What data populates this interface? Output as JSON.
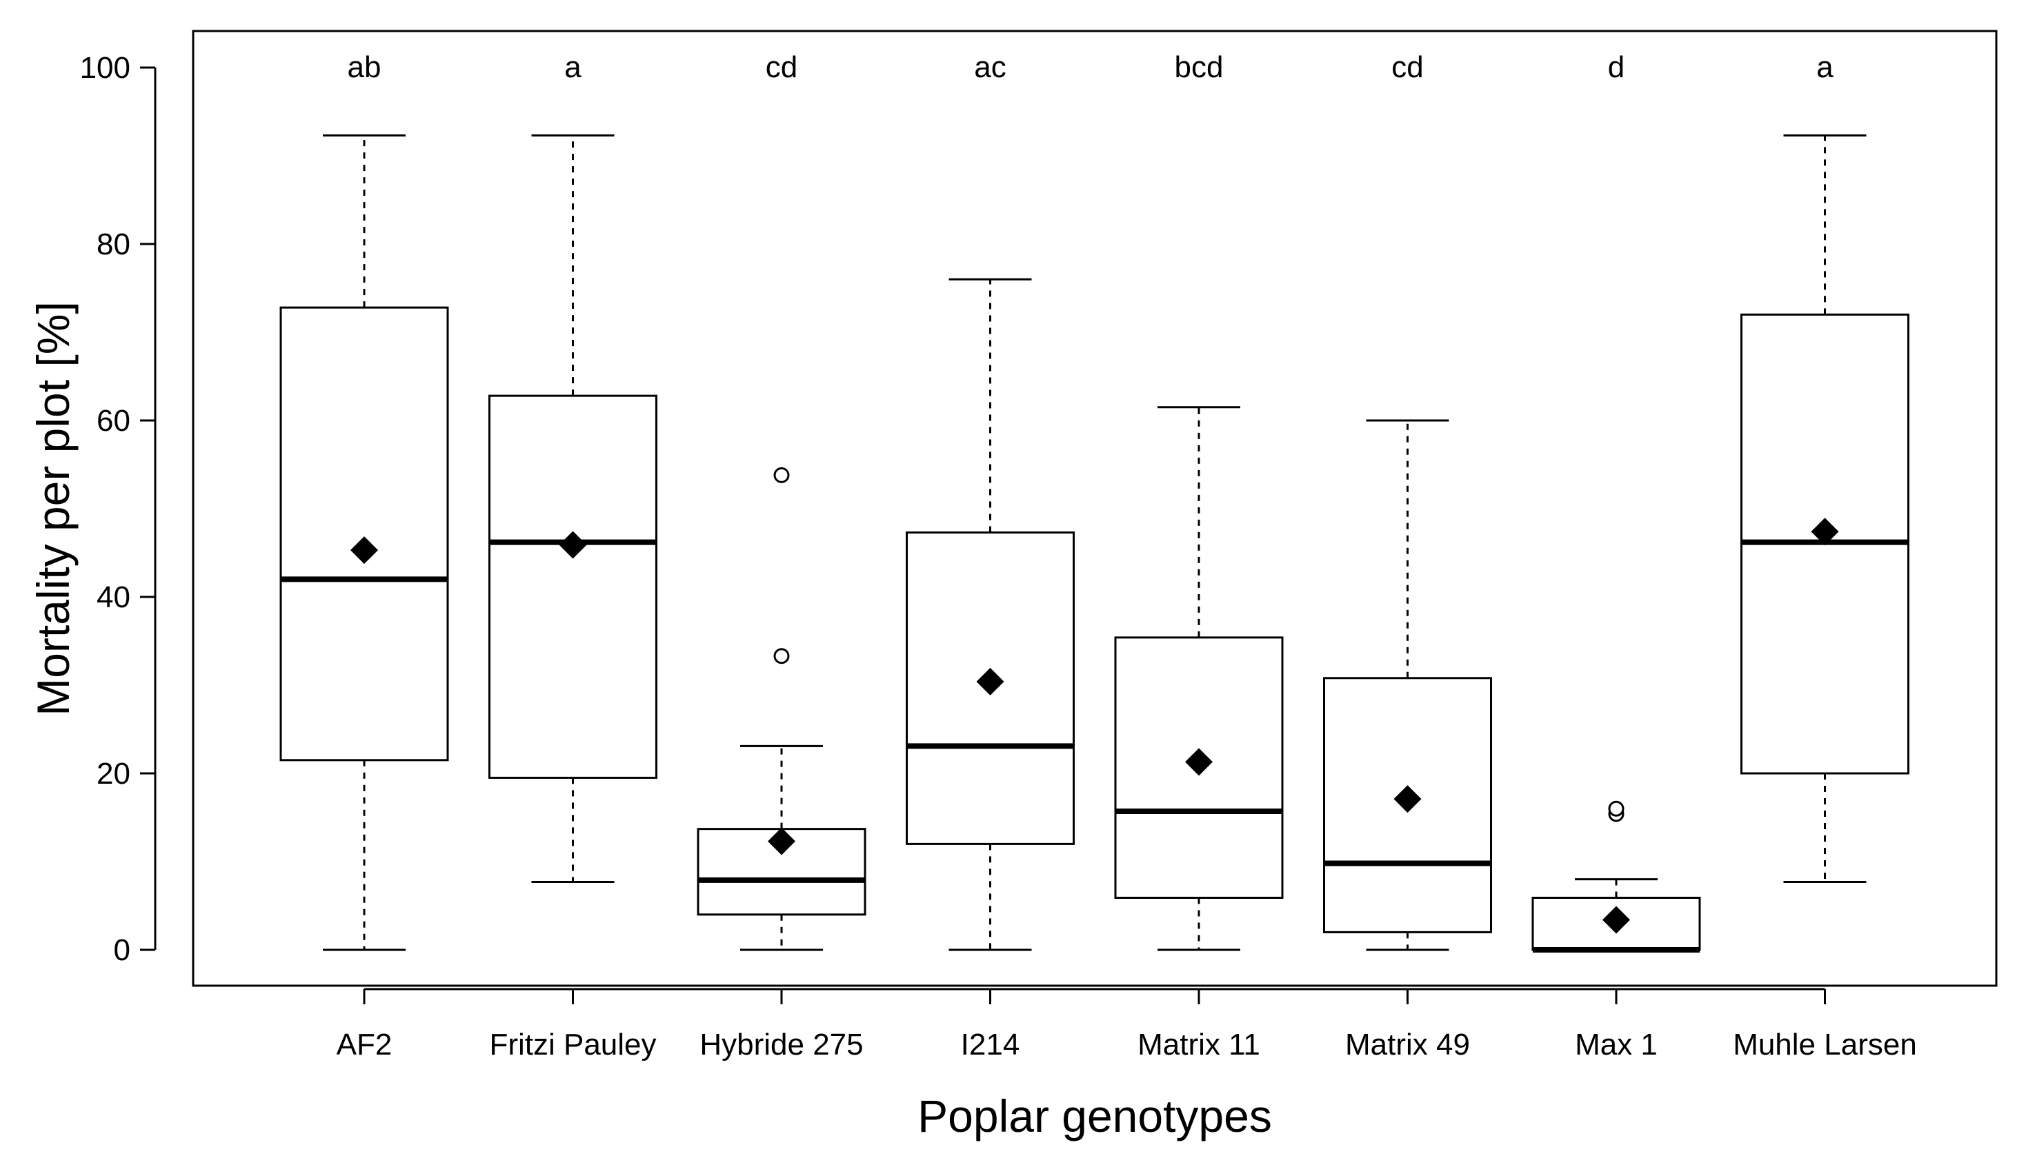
{
  "chart_data": {
    "type": "boxplot",
    "title": "",
    "xlabel": "Poplar genotypes",
    "ylabel": "Mortality per plot [%]",
    "ylim": [
      -4,
      100
    ],
    "yticks": [
      0,
      20,
      40,
      60,
      80,
      100
    ],
    "grid": false,
    "legend": "none",
    "categories": [
      "AF2",
      "Fritzi Pauley",
      "Hybride 275",
      "I214",
      "Matrix 11",
      "Matrix 49",
      "Max 1",
      "Muhle Larsen"
    ],
    "series": [
      {
        "name": "AF2",
        "whisker_low": 0,
        "q1": 21.5,
        "median": 42,
        "q3": 72.8,
        "whisker_high": 92.3,
        "mean": 45.3,
        "outliers": [],
        "letter": "ab"
      },
      {
        "name": "Fritzi Pauley",
        "whisker_low": 7.7,
        "q1": 19.5,
        "median": 46.2,
        "q3": 62.8,
        "whisker_high": 92.3,
        "mean": 45.9,
        "outliers": [],
        "letter": "a"
      },
      {
        "name": "Hybride 275",
        "whisker_low": 0,
        "q1": 4,
        "median": 7.9,
        "q3": 13.7,
        "whisker_high": 23.1,
        "mean": 12.3,
        "outliers": [
          33.3,
          53.8
        ],
        "letter": "cd"
      },
      {
        "name": "I214",
        "whisker_low": 0,
        "q1": 12,
        "median": 23.1,
        "q3": 47.3,
        "whisker_high": 76,
        "mean": 30.4,
        "outliers": [],
        "letter": "ac"
      },
      {
        "name": "Matrix 11",
        "whisker_low": 0,
        "q1": 5.9,
        "median": 15.7,
        "q3": 35.4,
        "whisker_high": 61.5,
        "mean": 21.3,
        "outliers": [],
        "letter": "bcd"
      },
      {
        "name": "Matrix 49",
        "whisker_low": 0,
        "q1": 2,
        "median": 9.8,
        "q3": 30.8,
        "whisker_high": 60,
        "mean": 17.1,
        "outliers": [],
        "letter": "cd"
      },
      {
        "name": "Max 1",
        "whisker_low": 0,
        "q1": 0,
        "median": 0,
        "q3": 5.9,
        "whisker_high": 8,
        "mean": 3.4,
        "outliers": [
          15.4,
          16
        ],
        "letter": "d"
      },
      {
        "name": "Muhle Larsen",
        "whisker_low": 7.7,
        "q1": 20,
        "median": 46.2,
        "q3": 72,
        "whisker_high": 92.3,
        "mean": 47.4,
        "outliers": [],
        "letter": "a"
      }
    ]
  }
}
